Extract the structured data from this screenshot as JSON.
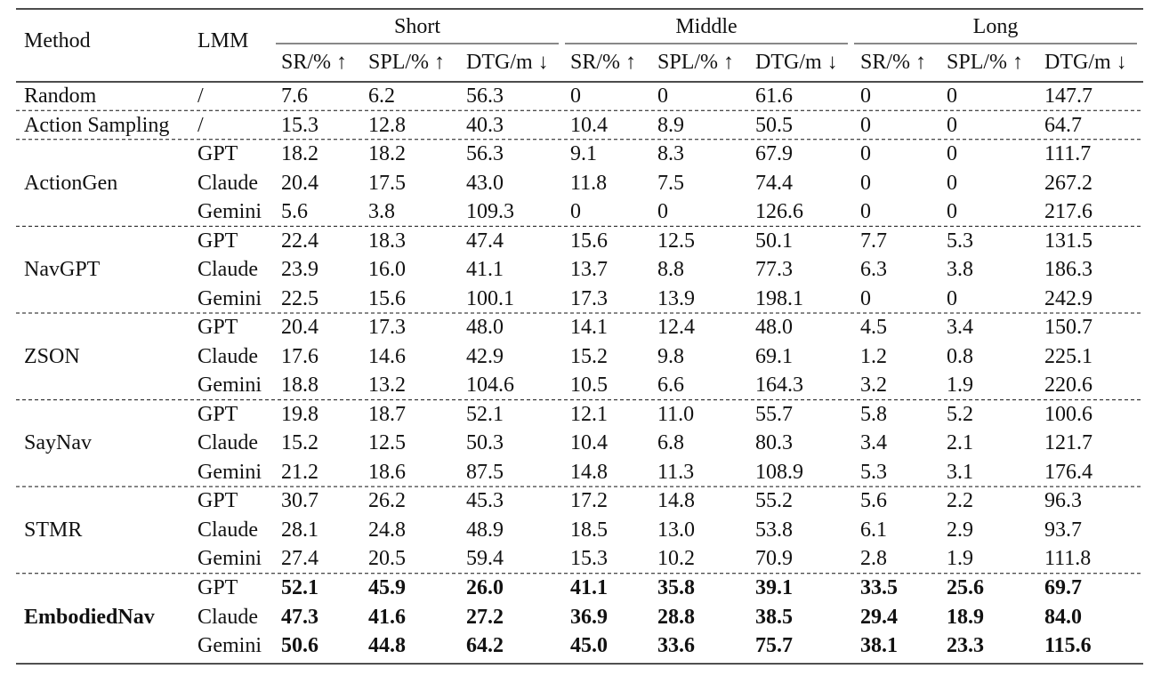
{
  "table": {
    "header": {
      "method": "Method",
      "lmm": "LMM",
      "groups": [
        {
          "name": "Short",
          "columns": [
            "SR/% ↑",
            "SPL/% ↑",
            "DTG/m ↓"
          ]
        },
        {
          "name": "Middle",
          "columns": [
            "SR/% ↑",
            "SPL/% ↑",
            "DTG/m ↓"
          ]
        },
        {
          "name": "Long",
          "columns": [
            "SR/% ↑",
            "SPL/% ↑",
            "DTG/m ↓"
          ]
        }
      ]
    },
    "groups": [
      {
        "method": "Random",
        "rows": [
          {
            "lmm": "/",
            "values": [
              "7.6",
              "6.2",
              "56.3",
              "0",
              "0",
              "61.6",
              "0",
              "0",
              "147.7"
            ]
          }
        ]
      },
      {
        "method": "Action Sampling",
        "rows": [
          {
            "lmm": "/",
            "values": [
              "15.3",
              "12.8",
              "40.3",
              "10.4",
              "8.9",
              "50.5",
              "0",
              "0",
              "64.7"
            ]
          }
        ]
      },
      {
        "method": "ActionGen",
        "rows": [
          {
            "lmm": "GPT",
            "values": [
              "18.2",
              "18.2",
              "56.3",
              "9.1",
              "8.3",
              "67.9",
              "0",
              "0",
              "111.7"
            ]
          },
          {
            "lmm": "Claude",
            "values": [
              "20.4",
              "17.5",
              "43.0",
              "11.8",
              "7.5",
              "74.4",
              "0",
              "0",
              "267.2"
            ]
          },
          {
            "lmm": "Gemini",
            "values": [
              "5.6",
              "3.8",
              "109.3",
              "0",
              "0",
              "126.6",
              "0",
              "0",
              "217.6"
            ]
          }
        ]
      },
      {
        "method": "NavGPT",
        "rows": [
          {
            "lmm": "GPT",
            "values": [
              "22.4",
              "18.3",
              "47.4",
              "15.6",
              "12.5",
              "50.1",
              "7.7",
              "5.3",
              "131.5"
            ]
          },
          {
            "lmm": "Claude",
            "values": [
              "23.9",
              "16.0",
              "41.1",
              "13.7",
              "8.8",
              "77.3",
              "6.3",
              "3.8",
              "186.3"
            ]
          },
          {
            "lmm": "Gemini",
            "values": [
              "22.5",
              "15.6",
              "100.1",
              "17.3",
              "13.9",
              "198.1",
              "0",
              "0",
              "242.9"
            ]
          }
        ]
      },
      {
        "method": "ZSON",
        "rows": [
          {
            "lmm": "GPT",
            "values": [
              "20.4",
              "17.3",
              "48.0",
              "14.1",
              "12.4",
              "48.0",
              "4.5",
              "3.4",
              "150.7"
            ]
          },
          {
            "lmm": "Claude",
            "values": [
              "17.6",
              "14.6",
              "42.9",
              "15.2",
              "9.8",
              "69.1",
              "1.2",
              "0.8",
              "225.1"
            ]
          },
          {
            "lmm": "Gemini",
            "values": [
              "18.8",
              "13.2",
              "104.6",
              "10.5",
              "6.6",
              "164.3",
              "3.2",
              "1.9",
              "220.6"
            ]
          }
        ]
      },
      {
        "method": "SayNav",
        "rows": [
          {
            "lmm": "GPT",
            "values": [
              "19.8",
              "18.7",
              "52.1",
              "12.1",
              "11.0",
              "55.7",
              "5.8",
              "5.2",
              "100.6"
            ]
          },
          {
            "lmm": "Claude",
            "values": [
              "15.2",
              "12.5",
              "50.3",
              "10.4",
              "6.8",
              "80.3",
              "3.4",
              "2.1",
              "121.7"
            ]
          },
          {
            "lmm": "Gemini",
            "values": [
              "21.2",
              "18.6",
              "87.5",
              "14.8",
              "11.3",
              "108.9",
              "5.3",
              "3.1",
              "176.4"
            ]
          }
        ]
      },
      {
        "method": "STMR",
        "rows": [
          {
            "lmm": "GPT",
            "values": [
              "30.7",
              "26.2",
              "45.3",
              "17.2",
              "14.8",
              "55.2",
              "5.6",
              "2.2",
              "96.3"
            ]
          },
          {
            "lmm": "Claude",
            "values": [
              "28.1",
              "24.8",
              "48.9",
              "18.5",
              "13.0",
              "53.8",
              "6.1",
              "2.9",
              "93.7"
            ]
          },
          {
            "lmm": "Gemini",
            "values": [
              "27.4",
              "20.5",
              "59.4",
              "15.3",
              "10.2",
              "70.9",
              "2.8",
              "1.9",
              "111.8"
            ]
          }
        ]
      },
      {
        "method": "EmbodiedNav",
        "bold": true,
        "rows": [
          {
            "lmm": "GPT",
            "values": [
              "52.1",
              "45.9",
              "26.0",
              "41.1",
              "35.8",
              "39.1",
              "33.5",
              "25.6",
              "69.7"
            ]
          },
          {
            "lmm": "Claude",
            "values": [
              "47.3",
              "41.6",
              "27.2",
              "36.9",
              "28.8",
              "38.5",
              "29.4",
              "18.9",
              "84.0"
            ]
          },
          {
            "lmm": "Gemini",
            "values": [
              "50.6",
              "44.8",
              "64.2",
              "45.0",
              "33.6",
              "75.7",
              "38.1",
              "23.3",
              "115.6"
            ]
          }
        ]
      }
    ]
  }
}
